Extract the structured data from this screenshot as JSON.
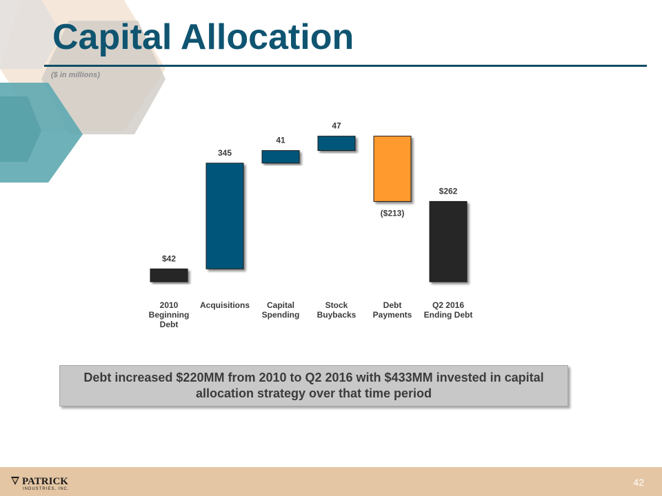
{
  "slide": {
    "title": "Capital Allocation",
    "subtitle": "($ in millions)",
    "callout": "Debt increased $220MM from 2010 to Q2 2016 with $433MM invested in capital allocation strategy over that time period",
    "page_number": "42"
  },
  "logo": {
    "name": "PATRICK",
    "tagline": "INDUSTRIES, INC."
  },
  "colors": {
    "title": "#0f5470",
    "navy_bar": "#04567a",
    "dark_bar": "#262626",
    "orange_bar": "#ff9a2e",
    "footer": "#e4c6a4",
    "teal_decor": "#5fa9b1",
    "tan_decor": "#e6c39e"
  },
  "chart_data": {
    "type": "bar",
    "subtype": "waterfall",
    "categories": [
      "2010 Beginning Debt",
      "Acquisitions",
      "Capital Spending",
      "Stock Buybacks",
      "Debt Payments",
      "Q2 2016 Ending Debt"
    ],
    "category_lines": [
      [
        "2010",
        "Beginning",
        "Debt"
      ],
      [
        "Acquisitions"
      ],
      [
        "Capital",
        "Spending"
      ],
      [
        "Stock",
        "Buybacks"
      ],
      [
        "Debt",
        "Payments"
      ],
      [
        "Q2 2016",
        "Ending Debt"
      ]
    ],
    "values": [
      42,
      345,
      41,
      47,
      -213,
      262
    ],
    "kinds": [
      "total",
      "delta",
      "delta",
      "delta",
      "delta",
      "total"
    ],
    "data_labels": [
      "$42",
      "345",
      "41",
      "47",
      "($213)",
      "$262"
    ],
    "bar_colors": [
      "#262626",
      "#04567a",
      "#04567a",
      "#04567a",
      "#ff9a2e",
      "#262626"
    ],
    "ylim": [
      0,
      480
    ],
    "grid": false,
    "legend": "none"
  }
}
